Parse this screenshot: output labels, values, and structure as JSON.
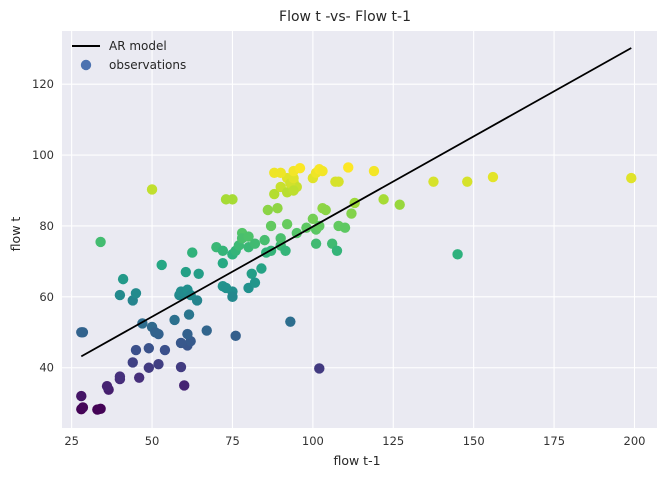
{
  "chart_data": {
    "type": "scatter",
    "title": "Flow t -vs- Flow t-1",
    "xlabel": "flow t-1",
    "ylabel": "flow t",
    "xlim": [
      22,
      207
    ],
    "ylim": [
      23,
      135
    ],
    "xticks": [
      25,
      50,
      75,
      100,
      125,
      150,
      175,
      200
    ],
    "yticks": [
      40,
      60,
      80,
      100,
      120
    ],
    "grid": true,
    "legend": {
      "position": "top-left",
      "entries": [
        {
          "label": "AR model",
          "kind": "line",
          "color": "#000000"
        },
        {
          "label": "observations",
          "kind": "marker",
          "color": "#4c72b0"
        }
      ]
    },
    "colors": {
      "background": "#eaeaf2",
      "grid": "#ffffff",
      "ar_line": "#000000",
      "colormap": "viridis"
    },
    "colormap_range": [
      28,
      96.5
    ],
    "series": [
      {
        "name": "AR model",
        "kind": "line",
        "x": [
          28,
          199
        ],
        "y": [
          43.2,
          130.2
        ]
      },
      {
        "name": "observations",
        "kind": "scatter",
        "color_by": "y",
        "x": [
          28,
          28.5,
          28,
          33,
          34,
          28.5,
          36.5,
          36,
          46,
          40,
          40,
          49,
          60,
          52,
          44,
          45,
          49,
          52,
          54,
          59,
          61,
          62,
          76,
          102,
          28,
          47,
          50,
          51,
          57,
          59,
          61,
          61.5,
          64,
          67,
          75,
          44,
          45,
          40,
          41,
          34,
          53,
          58.5,
          59,
          60,
          61,
          62,
          60.5,
          62.5,
          64.5,
          72,
          73,
          75,
          72,
          75,
          80,
          81,
          82,
          84,
          85.5,
          87,
          90,
          91.5,
          93,
          70,
          72,
          75,
          76,
          77,
          78,
          78,
          80,
          80,
          82,
          85,
          87,
          90,
          92,
          95,
          98,
          100,
          101,
          101,
          102,
          103,
          104,
          106,
          107.5,
          108,
          110,
          112,
          113,
          122,
          127,
          145,
          86,
          88,
          89,
          90,
          92,
          92,
          94,
          95,
          88,
          90,
          93,
          94,
          94,
          96,
          100,
          101,
          102,
          103,
          107,
          108,
          111,
          119,
          137.5,
          148,
          156,
          199,
          50,
          73,
          75,
          94
        ],
        "y": [
          28.3,
          28.8,
          32,
          28.2,
          28.4,
          50,
          33.8,
          34.8,
          37.2,
          36.8,
          37.5,
          40,
          35,
          41,
          41.5,
          45,
          45.5,
          49.5,
          45,
          40.2,
          46.3,
          47.5,
          49,
          39.8,
          50,
          52.5,
          51.5,
          50,
          53.5,
          47,
          49.5,
          55,
          59,
          50.5,
          61.5,
          59,
          61,
          60.5,
          65,
          75.5,
          69,
          60.5,
          61.5,
          61,
          62,
          60.5,
          67,
          72.5,
          66.5,
          63,
          62.5,
          60,
          69.5,
          72,
          62.5,
          66.5,
          64,
          68,
          72.5,
          73,
          74.5,
          73,
          53,
          74,
          73,
          72,
          73,
          74.5,
          78,
          76.5,
          74,
          77,
          75,
          76,
          80,
          76.5,
          80.5,
          78,
          79.5,
          82,
          79,
          75,
          80,
          85,
          84.5,
          75,
          73,
          80,
          79.5,
          83.5,
          86.5,
          87.5,
          86,
          72,
          84.5,
          89,
          85,
          91,
          89.5,
          93.5,
          92.5,
          91,
          95,
          95,
          92,
          93.5,
          95.5,
          96.3,
          93.5,
          95,
          96,
          95.5,
          92.5,
          92.5,
          96.5,
          95.5,
          92.5,
          92.5,
          93.8,
          93.5,
          90.3,
          87.5,
          87.5,
          90
        ]
      }
    ]
  }
}
